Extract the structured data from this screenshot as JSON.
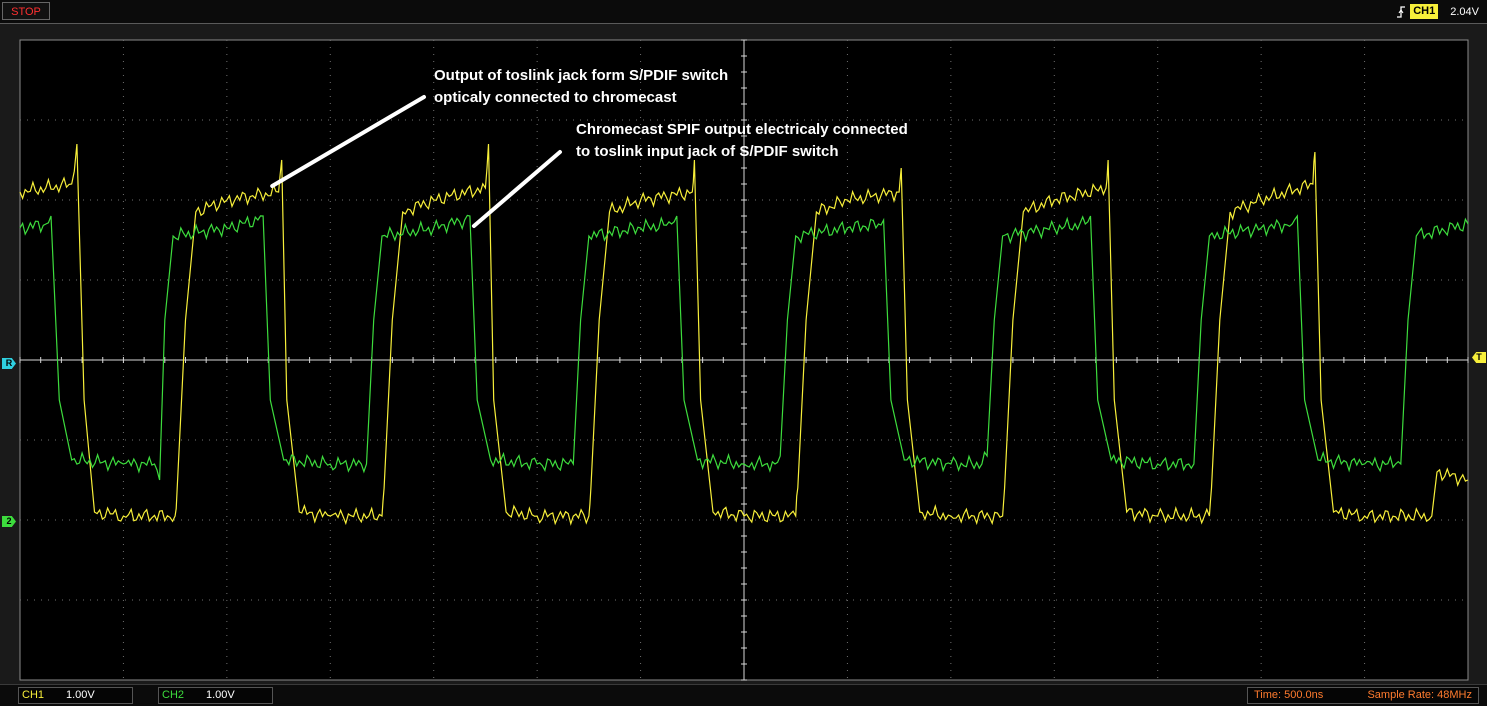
{
  "toolbar": {
    "stop_label": "STOP",
    "trigger_channel": "CH1",
    "trigger_level": "2.04V"
  },
  "status": {
    "ch1_name": "CH1",
    "ch1_scale": "1.00V",
    "ch2_name": "CH2",
    "ch2_scale": "1.00V",
    "time_base": "Time: 500.0ns",
    "sample_rate": "Sample Rate: 48MHz"
  },
  "markers": {
    "ref_marker": "R",
    "ch2_marker": "2",
    "trigger_marker": "T"
  },
  "colors": {
    "ch1": "#f7ef3a",
    "ch2": "#3ddc3d",
    "grid": "#6f6f6f",
    "screen_bg": "#000000",
    "stop": "#ff3030",
    "status_text": "#ff7b2e"
  },
  "chart_data": {
    "type": "line",
    "title": "",
    "xlabel": "",
    "ylabel": "",
    "x_divisions": 14,
    "y_divisions": 8,
    "xlim": [
      0,
      14
    ],
    "ylim": [
      -4,
      4
    ],
    "series": [
      {
        "channel": "CH1",
        "color": "#f7ef3a",
        "points": [
          [
            0,
            2.1
          ],
          [
            0.5,
            2.2
          ],
          [
            0.55,
            2.7
          ],
          [
            0.62,
            -0.5
          ],
          [
            0.72,
            -1.9
          ],
          [
            1.0,
            -1.95
          ],
          [
            1.5,
            -1.95
          ],
          [
            1.52,
            -1.6
          ],
          [
            1.6,
            0.5
          ],
          [
            1.7,
            1.85
          ],
          [
            2.0,
            2.0
          ],
          [
            2.5,
            2.1
          ],
          [
            2.53,
            2.5
          ],
          [
            2.58,
            -0.5
          ],
          [
            2.7,
            -1.9
          ],
          [
            3.0,
            -1.95
          ],
          [
            3.5,
            -1.95
          ],
          [
            3.52,
            -1.6
          ],
          [
            3.6,
            0.5
          ],
          [
            3.7,
            1.85
          ],
          [
            4.0,
            2.0
          ],
          [
            4.5,
            2.15
          ],
          [
            4.53,
            2.7
          ],
          [
            4.58,
            -0.5
          ],
          [
            4.7,
            -1.9
          ],
          [
            5.0,
            -1.95
          ],
          [
            5.5,
            -1.95
          ],
          [
            5.52,
            -1.6
          ],
          [
            5.6,
            0.5
          ],
          [
            5.7,
            1.85
          ],
          [
            6.0,
            2.0
          ],
          [
            6.5,
            2.1
          ],
          [
            6.52,
            2.5
          ],
          [
            6.58,
            -0.5
          ],
          [
            6.7,
            -1.9
          ],
          [
            7.0,
            -1.95
          ],
          [
            7.5,
            -1.95
          ],
          [
            7.52,
            -1.6
          ],
          [
            7.6,
            0.5
          ],
          [
            7.7,
            1.85
          ],
          [
            8.0,
            2.0
          ],
          [
            8.5,
            2.1
          ],
          [
            8.52,
            2.4
          ],
          [
            8.58,
            -0.5
          ],
          [
            8.7,
            -1.9
          ],
          [
            9.0,
            -1.95
          ],
          [
            9.5,
            -1.95
          ],
          [
            9.52,
            -1.6
          ],
          [
            9.6,
            0.5
          ],
          [
            9.7,
            1.85
          ],
          [
            10.0,
            2.0
          ],
          [
            10.5,
            2.15
          ],
          [
            10.52,
            2.5
          ],
          [
            10.58,
            -0.5
          ],
          [
            10.7,
            -1.9
          ],
          [
            11.0,
            -1.95
          ],
          [
            11.5,
            -1.95
          ],
          [
            11.52,
            -1.6
          ],
          [
            11.6,
            0.5
          ],
          [
            11.7,
            1.85
          ],
          [
            12.0,
            2.0
          ],
          [
            12.5,
            2.2
          ],
          [
            12.52,
            2.6
          ],
          [
            12.58,
            -0.5
          ],
          [
            12.7,
            -1.9
          ],
          [
            13.0,
            -1.95
          ],
          [
            13.65,
            -1.95
          ],
          [
            13.7,
            -1.4
          ],
          [
            14.0,
            -1.5
          ]
        ]
      },
      {
        "channel": "CH2",
        "color": "#3ddc3d",
        "points": [
          [
            0,
            1.65
          ],
          [
            0.25,
            1.7
          ],
          [
            0.3,
            1.8
          ],
          [
            0.38,
            -0.5
          ],
          [
            0.5,
            -1.25
          ],
          [
            1.0,
            -1.3
          ],
          [
            1.3,
            -1.3
          ],
          [
            1.35,
            -1.5
          ],
          [
            1.4,
            0.5
          ],
          [
            1.48,
            1.55
          ],
          [
            2.0,
            1.65
          ],
          [
            2.3,
            1.75
          ],
          [
            2.35,
            1.8
          ],
          [
            2.42,
            -0.5
          ],
          [
            2.55,
            -1.25
          ],
          [
            3.0,
            -1.3
          ],
          [
            3.3,
            -1.3
          ],
          [
            3.35,
            -1.3
          ],
          [
            3.42,
            0.5
          ],
          [
            3.5,
            1.55
          ],
          [
            4.0,
            1.65
          ],
          [
            4.3,
            1.75
          ],
          [
            4.35,
            1.8
          ],
          [
            4.42,
            -0.5
          ],
          [
            4.55,
            -1.25
          ],
          [
            5.0,
            -1.3
          ],
          [
            5.3,
            -1.3
          ],
          [
            5.35,
            -1.3
          ],
          [
            5.42,
            0.5
          ],
          [
            5.5,
            1.55
          ],
          [
            6.0,
            1.65
          ],
          [
            6.3,
            1.7
          ],
          [
            6.35,
            1.8
          ],
          [
            6.42,
            -0.5
          ],
          [
            6.55,
            -1.25
          ],
          [
            7.0,
            -1.3
          ],
          [
            7.3,
            -1.3
          ],
          [
            7.35,
            -1.2
          ],
          [
            7.42,
            0.5
          ],
          [
            7.5,
            1.55
          ],
          [
            8.0,
            1.65
          ],
          [
            8.3,
            1.7
          ],
          [
            8.35,
            1.75
          ],
          [
            8.42,
            -0.5
          ],
          [
            8.55,
            -1.25
          ],
          [
            9.0,
            -1.3
          ],
          [
            9.3,
            -1.3
          ],
          [
            9.35,
            -1.2
          ],
          [
            9.42,
            0.5
          ],
          [
            9.5,
            1.55
          ],
          [
            10.0,
            1.65
          ],
          [
            10.3,
            1.7
          ],
          [
            10.35,
            1.8
          ],
          [
            10.42,
            -0.5
          ],
          [
            10.55,
            -1.25
          ],
          [
            11.0,
            -1.3
          ],
          [
            11.3,
            -1.3
          ],
          [
            11.35,
            -1.3
          ],
          [
            11.42,
            0.5
          ],
          [
            11.5,
            1.55
          ],
          [
            12.0,
            1.65
          ],
          [
            12.3,
            1.7
          ],
          [
            12.35,
            1.8
          ],
          [
            12.42,
            -0.5
          ],
          [
            12.55,
            -1.25
          ],
          [
            13.0,
            -1.3
          ],
          [
            13.3,
            -1.3
          ],
          [
            13.35,
            -1.3
          ],
          [
            13.42,
            0.5
          ],
          [
            13.5,
            1.55
          ],
          [
            14.0,
            1.7
          ]
        ]
      }
    ],
    "annotations": [
      {
        "lines": [
          "Output of toslink jack form S/PDIF switch",
          "opticaly connected to chromecast"
        ],
        "points_to": [
          2.4,
          2.15
        ]
      },
      {
        "lines": [
          "Chromecast SPIF output electricaly connected",
          "to toslink input jack of S/PDIF switch"
        ],
        "points_to": [
          4.35,
          1.65
        ]
      }
    ],
    "grid": true
  }
}
